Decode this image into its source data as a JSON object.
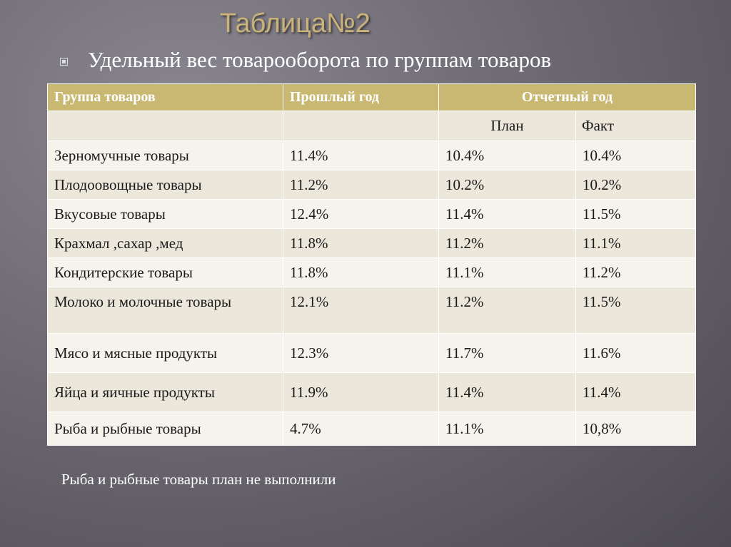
{
  "slide": {
    "title": "Таблица№2",
    "subtitle": "Удельный вес товарооборота по группам товаров",
    "note": "Рыба и рыбные товары план не выполнили"
  },
  "table": {
    "headers": {
      "group": "Группа товаров",
      "last_year": "Прошлый год",
      "report_year": "Отчетный год",
      "plan": "План",
      "fact": "Факт"
    },
    "rows": [
      {
        "group": "Зерномучные товары",
        "last_year": "11.4%",
        "plan": "10.4%",
        "fact": "10.4%"
      },
      {
        "group": "Плодоовощные товары",
        "last_year": "11.2%",
        "plan": "10.2%",
        "fact": "10.2%"
      },
      {
        "group": "Вкусовые товары",
        "last_year": "12.4%",
        "plan": "11.4%",
        "fact": "11.5%"
      },
      {
        "group": "Крахмал ,сахар ,мед",
        "last_year": "11.8%",
        "plan": "11.2%",
        "fact": "11.1%"
      },
      {
        "group": "Кондитерские товары",
        "last_year": "11.8%",
        "plan": "11.1%",
        "fact": "11.2%"
      },
      {
        "group": "Молоко и молочные товары",
        "last_year": "12.1%",
        "plan": "11.2%",
        "fact": "11.5%"
      },
      {
        "group": "Мясо и мясные продукты",
        "last_year": "12.3%",
        "plan": "11.7%",
        "fact": "11.6%"
      },
      {
        "group": "Яйца и яичные продукты",
        "last_year": "11.9%",
        "plan": "11.4%",
        "fact": "11.4%"
      },
      {
        "group": "Рыба и рыбные товары",
        "last_year": "4.7%",
        "plan": "11.1%",
        "fact": "10,8%"
      }
    ]
  },
  "colors": {
    "header": "#c9b872",
    "title": "#c9b37a"
  }
}
